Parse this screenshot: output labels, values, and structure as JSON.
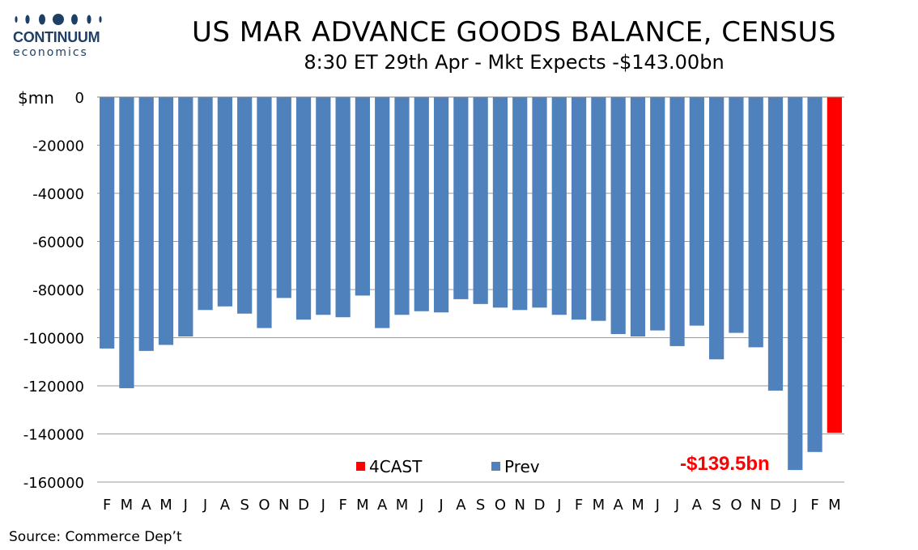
{
  "logo": {
    "brand": "CONTINUUM",
    "sub": "economics",
    "color": "#1e3f66"
  },
  "title": "US MAR ADVANCE GOODS BALANCE, CENSUS",
  "subtitle": "8:30 ET 29th Apr - Mkt Expects -$143.00bn",
  "source": "Source: Commerce Dep’t",
  "chart_data": {
    "type": "bar",
    "title": "US MAR ADVANCE GOODS BALANCE, CENSUS",
    "subtitle": "8:30 ET 29th Apr - Mkt Expects -$143.00bn",
    "xlabel": "",
    "ylabel": "$mn",
    "ylim": [
      -160000,
      0
    ],
    "yticks": [
      0,
      -20000,
      -40000,
      -60000,
      -80000,
      -100000,
      -120000,
      -140000,
      -160000
    ],
    "grid": true,
    "legend_position": "bottom",
    "categories": [
      "F",
      "M",
      "A",
      "M",
      "J",
      "J",
      "A",
      "S",
      "O",
      "N",
      "D",
      "J",
      "F",
      "M",
      "A",
      "M",
      "J",
      "J",
      "A",
      "S",
      "O",
      "N",
      "D",
      "J",
      "F",
      "M",
      "A",
      "M",
      "J",
      "J",
      "A",
      "S",
      "O",
      "N",
      "D",
      "J",
      "F",
      "M"
    ],
    "series": [
      {
        "name": "Prev",
        "color": "#4f81bd",
        "values": [
          -104500,
          -121000,
          -105500,
          -103000,
          -99500,
          -88500,
          -87000,
          -90000,
          -96000,
          -83500,
          -92500,
          -90500,
          -91500,
          -82500,
          -96000,
          -90500,
          -89000,
          -89500,
          -84000,
          -86000,
          -87500,
          -88500,
          -87500,
          -90500,
          -92500,
          -93000,
          -98500,
          -99500,
          -97000,
          -103500,
          -95000,
          -109000,
          -98000,
          -104000,
          -122000,
          -155000,
          -147500,
          null
        ]
      },
      {
        "name": "4CAST",
        "color": "#ff0000",
        "values": [
          null,
          null,
          null,
          null,
          null,
          null,
          null,
          null,
          null,
          null,
          null,
          null,
          null,
          null,
          null,
          null,
          null,
          null,
          null,
          null,
          null,
          null,
          null,
          null,
          null,
          null,
          null,
          null,
          null,
          null,
          null,
          null,
          null,
          null,
          null,
          null,
          null,
          -139500
        ]
      }
    ],
    "annotations": [
      {
        "text": "-$139.5bn",
        "color": "#ff0000"
      }
    ]
  }
}
